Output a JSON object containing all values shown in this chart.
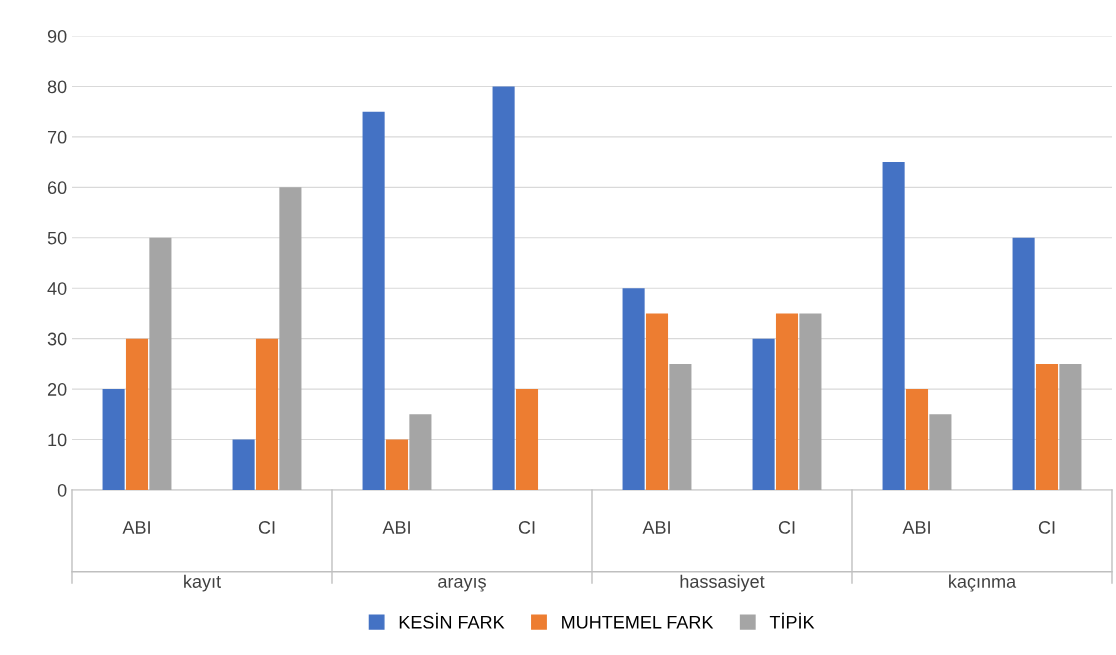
{
  "chart_data": {
    "type": "bar",
    "categories": [
      "ABI",
      "CI",
      "ABI",
      "CI",
      "ABI",
      "CI",
      "ABI",
      "CI"
    ],
    "series": [
      {
        "name": "KESİN FARK",
        "color": "#4472c4",
        "values": [
          20,
          10,
          75,
          80,
          40,
          30,
          65,
          50
        ]
      },
      {
        "name": "MUHTEMEL FARK",
        "color": "#ed7d31",
        "values": [
          30,
          30,
          10,
          20,
          35,
          35,
          20,
          25
        ]
      },
      {
        "name": "TİPİK",
        "color": "#a5a5a5",
        "values": [
          50,
          60,
          15,
          0,
          25,
          35,
          15,
          25
        ]
      }
    ],
    "annotations": [
      "kayıt",
      "arayış",
      "hassasiyet",
      "kaçınma"
    ],
    "ylim": [
      0,
      90
    ],
    "yticks": [
      0,
      10,
      20,
      30,
      40,
      50,
      60,
      70,
      80,
      90
    ],
    "grid": "y",
    "legend": "bottom"
  }
}
